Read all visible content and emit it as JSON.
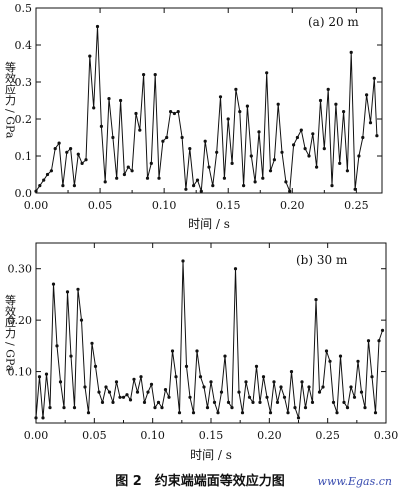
{
  "caption": "图 2　约束端端面等效应力图",
  "watermark": "www.Egas.cn",
  "chart_data": [
    {
      "type": "line",
      "panel_label": "(a) 20 m",
      "xlabel": "时间 / s",
      "ylabel": "等效应力 / GPa",
      "xlim": [
        0,
        0.27
      ],
      "ylim": [
        0,
        0.5
      ],
      "xticks": [
        "0.00",
        "0.05",
        "0.10",
        "0.15",
        "0.20",
        "0.25"
      ],
      "yticks": [
        "0.0",
        "0.1",
        "0.2",
        "0.3",
        "0.4",
        "0.5"
      ],
      "series": [
        {
          "x": [
            0.0,
            0.003,
            0.006,
            0.009,
            0.012,
            0.015,
            0.018,
            0.021,
            0.024,
            0.027,
            0.03,
            0.033,
            0.036,
            0.039,
            0.042,
            0.045,
            0.048,
            0.051,
            0.054,
            0.057,
            0.06,
            0.063,
            0.066,
            0.069,
            0.072,
            0.075,
            0.078,
            0.081,
            0.084,
            0.087,
            0.09,
            0.093,
            0.096,
            0.099,
            0.102,
            0.105,
            0.108,
            0.111,
            0.114,
            0.117,
            0.12,
            0.123,
            0.126,
            0.129,
            0.132,
            0.135,
            0.138,
            0.141,
            0.144,
            0.147,
            0.15,
            0.153,
            0.156,
            0.159,
            0.162,
            0.165,
            0.168,
            0.171,
            0.174,
            0.177,
            0.18,
            0.183,
            0.186,
            0.189,
            0.192,
            0.195,
            0.198,
            0.201,
            0.204,
            0.207,
            0.21,
            0.213,
            0.216,
            0.219,
            0.222,
            0.225,
            0.228,
            0.231,
            0.234,
            0.237,
            0.24,
            0.243,
            0.246,
            0.249,
            0.252,
            0.255,
            0.258,
            0.261,
            0.264,
            0.266
          ],
          "y": [
            0.005,
            0.02,
            0.035,
            0.05,
            0.06,
            0.12,
            0.135,
            0.02,
            0.11,
            0.12,
            0.02,
            0.105,
            0.08,
            0.09,
            0.37,
            0.23,
            0.45,
            0.18,
            0.03,
            0.255,
            0.15,
            0.04,
            0.25,
            0.05,
            0.07,
            0.06,
            0.215,
            0.17,
            0.32,
            0.04,
            0.08,
            0.32,
            0.04,
            0.14,
            0.15,
            0.22,
            0.215,
            0.22,
            0.15,
            0.01,
            0.12,
            0.02,
            0.035,
            0.005,
            0.14,
            0.07,
            0.02,
            0.11,
            0.26,
            0.04,
            0.2,
            0.08,
            0.28,
            0.22,
            0.02,
            0.235,
            0.1,
            0.03,
            0.165,
            0.04,
            0.325,
            0.06,
            0.09,
            0.24,
            0.11,
            0.03,
            0.005,
            0.13,
            0.15,
            0.17,
            0.12,
            0.1,
            0.16,
            0.07,
            0.25,
            0.12,
            0.28,
            0.02,
            0.24,
            0.08,
            0.22,
            0.06,
            0.38,
            0.01,
            0.1,
            0.15,
            0.265,
            0.19,
            0.31,
            0.155
          ]
        }
      ]
    },
    {
      "type": "line",
      "panel_label": "(b) 30 m",
      "xlabel": "时间 / s",
      "ylabel": "等效应力 / GPa",
      "xlim": [
        0,
        0.3
      ],
      "ylim": [
        0,
        0.35
      ],
      "xticks": [
        "0.00",
        "0.05",
        "0.10",
        "0.15",
        "0.20",
        "0.25",
        "0.30"
      ],
      "yticks": [
        "0.10",
        "0.20",
        "0.30"
      ],
      "series": [
        {
          "x": [
            0.0,
            0.003,
            0.006,
            0.009,
            0.012,
            0.015,
            0.018,
            0.021,
            0.024,
            0.027,
            0.03,
            0.033,
            0.036,
            0.039,
            0.042,
            0.045,
            0.048,
            0.051,
            0.054,
            0.057,
            0.06,
            0.063,
            0.066,
            0.069,
            0.072,
            0.075,
            0.078,
            0.081,
            0.084,
            0.087,
            0.09,
            0.093,
            0.096,
            0.099,
            0.102,
            0.105,
            0.108,
            0.111,
            0.114,
            0.117,
            0.12,
            0.123,
            0.126,
            0.129,
            0.132,
            0.135,
            0.138,
            0.141,
            0.144,
            0.147,
            0.15,
            0.153,
            0.156,
            0.159,
            0.162,
            0.165,
            0.168,
            0.171,
            0.174,
            0.177,
            0.18,
            0.183,
            0.186,
            0.189,
            0.192,
            0.195,
            0.198,
            0.201,
            0.204,
            0.207,
            0.21,
            0.213,
            0.216,
            0.219,
            0.222,
            0.225,
            0.228,
            0.231,
            0.234,
            0.237,
            0.24,
            0.243,
            0.246,
            0.249,
            0.252,
            0.255,
            0.258,
            0.261,
            0.264,
            0.267,
            0.27,
            0.273,
            0.276,
            0.279,
            0.282,
            0.285,
            0.288,
            0.291,
            0.294,
            0.297
          ],
          "y": [
            0.01,
            0.09,
            0.01,
            0.095,
            0.03,
            0.27,
            0.15,
            0.08,
            0.03,
            0.255,
            0.13,
            0.03,
            0.26,
            0.2,
            0.07,
            0.02,
            0.155,
            0.11,
            0.06,
            0.04,
            0.07,
            0.06,
            0.04,
            0.08,
            0.05,
            0.05,
            0.055,
            0.045,
            0.085,
            0.06,
            0.09,
            0.04,
            0.06,
            0.075,
            0.03,
            0.04,
            0.03,
            0.065,
            0.05,
            0.14,
            0.09,
            0.02,
            0.315,
            0.11,
            0.05,
            0.02,
            0.14,
            0.09,
            0.07,
            0.03,
            0.08,
            0.04,
            0.02,
            0.06,
            0.13,
            0.04,
            0.03,
            0.3,
            0.06,
            0.02,
            0.08,
            0.05,
            0.04,
            0.11,
            0.04,
            0.09,
            0.05,
            0.02,
            0.08,
            0.04,
            0.07,
            0.05,
            0.02,
            0.1,
            0.03,
            0.01,
            0.08,
            0.03,
            0.07,
            0.04,
            0.24,
            0.06,
            0.07,
            0.14,
            0.12,
            0.04,
            0.02,
            0.13,
            0.04,
            0.03,
            0.07,
            0.05,
            0.12,
            0.06,
            0.03,
            0.16,
            0.09,
            0.02,
            0.16,
            0.18
          ]
        }
      ]
    }
  ]
}
